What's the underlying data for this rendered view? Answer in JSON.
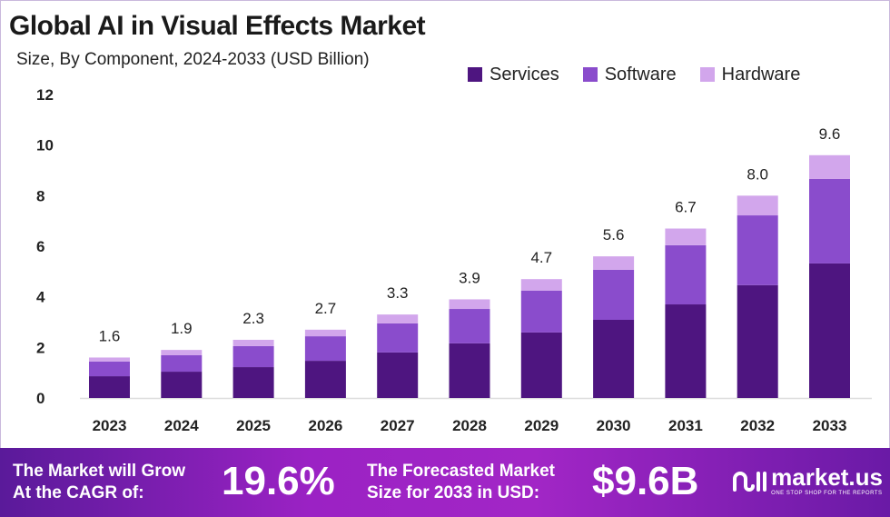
{
  "chart_data": {
    "type": "bar",
    "stacked": true,
    "title": "Global AI in Visual Effects Market",
    "subtitle": "Size, By Component, 2024-2033 (USD Billion)",
    "categories": [
      "2023",
      "2024",
      "2025",
      "2026",
      "2027",
      "2028",
      "2029",
      "2030",
      "2031",
      "2032",
      "2033"
    ],
    "series": [
      {
        "name": "Services",
        "color": "#4e1580",
        "values": [
          0.86,
          1.04,
          1.22,
          1.47,
          1.8,
          2.16,
          2.59,
          3.09,
          3.7,
          4.46,
          5.32
        ]
      },
      {
        "name": "Software",
        "color": "#8a4ccc",
        "values": [
          0.58,
          0.65,
          0.83,
          0.97,
          1.15,
          1.36,
          1.65,
          1.98,
          2.34,
          2.76,
          3.34
        ]
      },
      {
        "name": "Hardware",
        "color": "#d2a6ec",
        "values": [
          0.16,
          0.21,
          0.25,
          0.26,
          0.35,
          0.38,
          0.46,
          0.53,
          0.66,
          0.78,
          0.94
        ]
      }
    ],
    "totals": [
      "1.6",
      "1.9",
      "2.3",
      "2.7",
      "3.3",
      "3.9",
      "4.7",
      "5.6",
      "6.7",
      "8.0",
      "9.6"
    ],
    "yticks": [
      "0",
      "2",
      "4",
      "6",
      "8",
      "10",
      "12"
    ],
    "ylim": [
      0,
      12
    ],
    "grid": false,
    "legend": "top-right"
  },
  "banner": {
    "cagr_label_1": "The Market will Grow",
    "cagr_label_2": "At the CAGR of:",
    "cagr_value": "19.6%",
    "forecast_label_1": "The Forecasted Market",
    "forecast_label_2": "Size for 2033 in USD:",
    "forecast_value": "$9.6B",
    "logo_text": "market.us",
    "logo_tagline": "ONE STOP SHOP FOR THE REPORTS"
  }
}
